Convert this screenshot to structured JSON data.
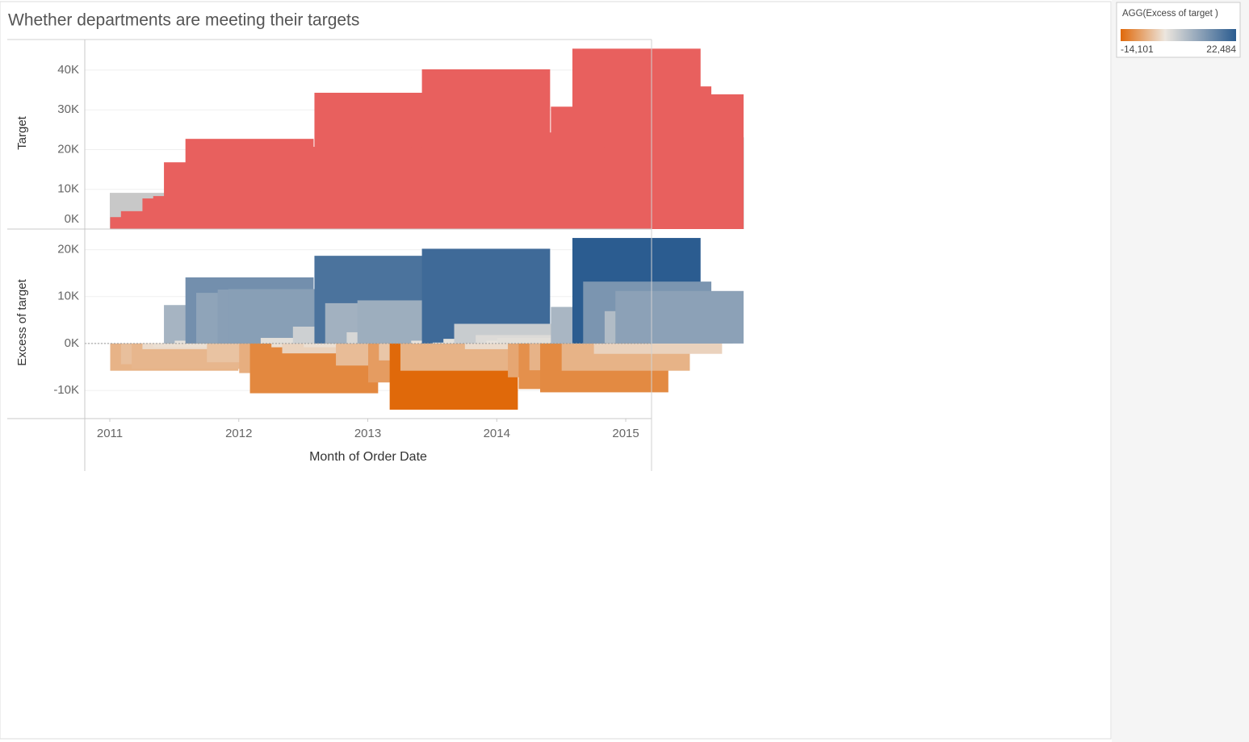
{
  "chart_data": [
    {
      "type": "bar",
      "title": "Whether departments are meeting their targets",
      "ylabel": "Target",
      "color": "#e8605e",
      "target_color": "#c8c8c8",
      "values": [
        3000,
        4500,
        3200,
        7700,
        8300,
        16800,
        9700,
        22700,
        19900,
        4900,
        20500,
        20700,
        9500,
        5300,
        17000,
        15200,
        14000,
        19500,
        15000,
        34300,
        24500,
        11000,
        18500,
        25200,
        11400,
        16400,
        5700,
        20900,
        20700,
        40200,
        20300,
        20900,
        24300,
        18900,
        21900,
        20500,
        24100,
        15600,
        13200,
        17000,
        12400,
        30800,
        16800,
        45400,
        35900,
        20700,
        29800,
        33900
      ],
      "target": [
        9100,
        9100,
        9100,
        9100,
        9100,
        9100,
        9100,
        9100,
        9100,
        9100,
        9100,
        9100,
        16200,
        16200,
        16200,
        16200,
        16200,
        16200,
        16200,
        16200,
        16200,
        16200,
        16200,
        16200,
        20100,
        20100,
        20100,
        20100,
        20100,
        20100,
        20100,
        20100,
        20100,
        20100,
        20100,
        23100,
        23100,
        23100,
        23100,
        23100,
        23100,
        23100,
        23100,
        23100,
        23100,
        23100,
        23100,
        23100
      ],
      "ylim": [
        0,
        47700
      ],
      "yticks": [
        {
          "value": 0,
          "label": "0K"
        },
        {
          "value": 10000,
          "label": "10K"
        },
        {
          "value": 20000,
          "label": "20K"
        },
        {
          "value": 30000,
          "label": "30K"
        },
        {
          "value": 40000,
          "label": "40K"
        }
      ],
      "grid": true
    },
    {
      "type": "diverging_bar",
      "ylabel": "Excess of target",
      "xlabel": "Month of Order Date",
      "x": [
        "2011-01",
        "2011-02",
        "2011-03",
        "2011-04",
        "2011-05",
        "2011-06",
        "2011-07",
        "2011-08",
        "2011-09",
        "2011-10",
        "2011-11",
        "2011-12",
        "2012-01",
        "2012-02",
        "2012-03",
        "2012-04",
        "2012-05",
        "2012-06",
        "2012-07",
        "2012-08",
        "2012-09",
        "2012-10",
        "2012-11",
        "2012-12",
        "2013-01",
        "2013-02",
        "2013-03",
        "2013-04",
        "2013-05",
        "2013-06",
        "2013-07",
        "2013-08",
        "2013-09",
        "2013-10",
        "2013-11",
        "2013-12",
        "2014-01",
        "2014-02",
        "2014-03",
        "2014-04",
        "2014-05",
        "2014-06",
        "2014-07",
        "2014-08",
        "2014-09",
        "2014-10",
        "2014-11",
        "2014-12"
      ],
      "values": [
        -5800,
        -4400,
        -5400,
        -1200,
        -800,
        8200,
        600,
        14100,
        10800,
        -4000,
        11500,
        11600,
        -6300,
        -10600,
        1200,
        -800,
        -2100,
        3600,
        -800,
        18700,
        8600,
        -4700,
        2400,
        9200,
        -8300,
        -3600,
        -14100,
        -5800,
        600,
        20200,
        200,
        1000,
        4200,
        -1200,
        1800,
        600,
        1200,
        -7200,
        -9700,
        -5700,
        -10400,
        7800,
        -5800,
        22500,
        13200,
        -2200,
        6900,
        11200
      ],
      "ylim": [
        -16000,
        24400
      ],
      "yticks": [
        {
          "value": -10000,
          "label": "-10K"
        },
        {
          "value": 0,
          "label": "0K"
        },
        {
          "value": 10000,
          "label": "10K"
        },
        {
          "value": 20000,
          "label": "20K"
        }
      ],
      "xlim": [
        2010.806,
        2015.2
      ],
      "xticks": [
        2011,
        2012,
        2013,
        2014,
        2015
      ],
      "grid": true,
      "color_legend": {
        "title": "AGG(Excess of target )",
        "min": {
          "value": -14101,
          "label": "-14,101"
        },
        "max": {
          "value": 22484,
          "label": "22,484"
        },
        "low_color": "#e0690a",
        "mid_color": "#ece6de",
        "high_color": "#2b5c90"
      }
    }
  ]
}
